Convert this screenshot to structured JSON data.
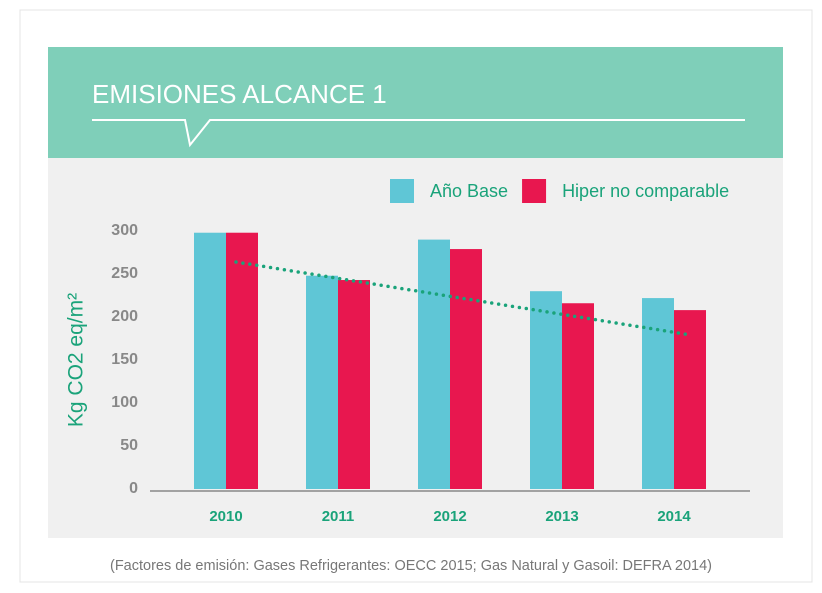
{
  "chart_data": {
    "type": "bar",
    "title": "EMISIONES ALCANCE 1",
    "y_label": "Kg CO2 eq/m²",
    "categories": [
      "2010",
      "2011",
      "2012",
      "2013",
      "2014"
    ],
    "series": [
      {
        "name": "Año Base",
        "color": "#5fc6d6",
        "values": [
          298,
          248,
          290,
          230,
          222
        ]
      },
      {
        "name": "Hiper no comparable",
        "color": "#e8174f",
        "values": [
          298,
          243,
          279,
          216,
          208
        ]
      }
    ],
    "trendline": {
      "color": "#1aa37a",
      "values": [
        264,
        180
      ]
    },
    "ylim": [
      0,
      300
    ],
    "yticks": [
      0,
      50,
      100,
      150,
      200,
      250,
      300
    ],
    "caption": "(Factores de emisión: Gases Refrigerantes: OECC 2015; Gas Natural y Gasoil: DEFRA 2014)"
  }
}
